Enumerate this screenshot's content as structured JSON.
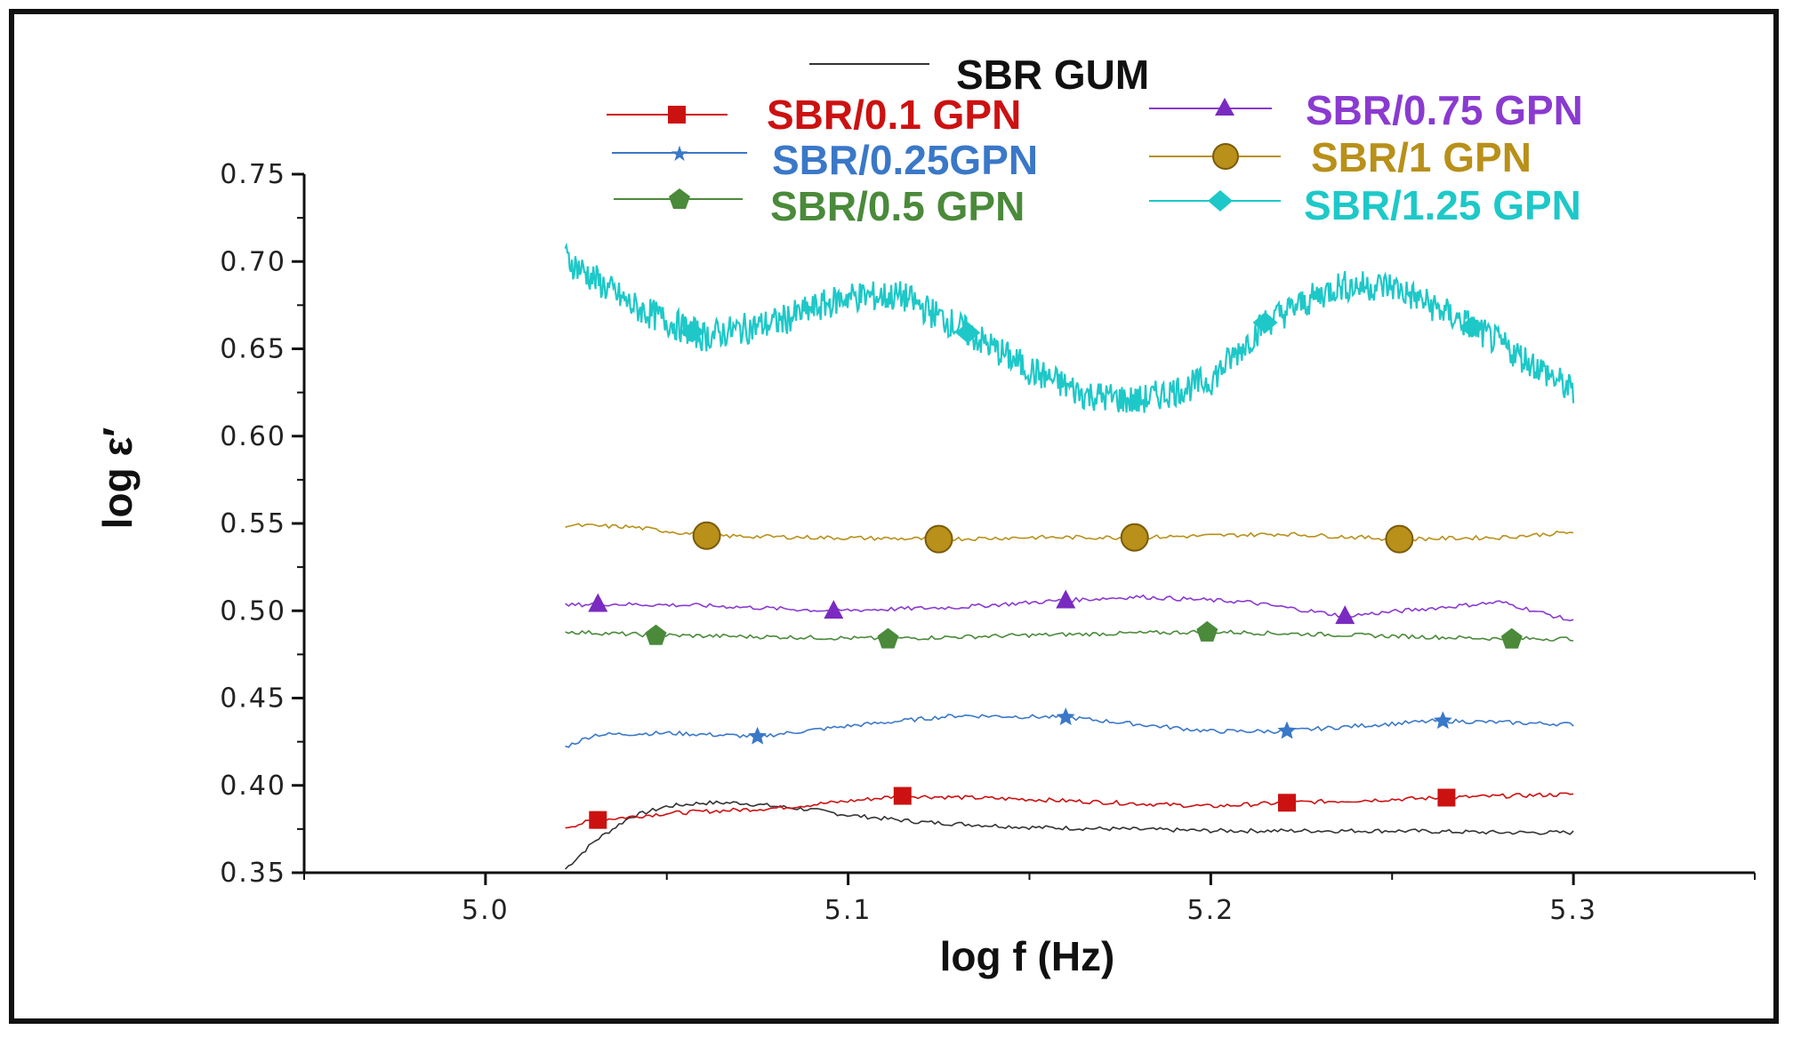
{
  "chart_data": {
    "type": "line",
    "xlabel": "log f (Hz)",
    "ylabel": "log ε′",
    "xlim": [
      4.95,
      5.35
    ],
    "ylim": [
      0.35,
      0.75
    ],
    "xticks": [
      "5.0",
      "5.1",
      "5.2",
      "5.3"
    ],
    "xtick_values": [
      5.0,
      5.1,
      5.2,
      5.3
    ],
    "yticks": [
      "0.35",
      "0.40",
      "0.45",
      "0.50",
      "0.55",
      "0.60",
      "0.65",
      "0.70",
      "0.75"
    ],
    "ytick_values": [
      0.35,
      0.4,
      0.45,
      0.5,
      0.55,
      0.6,
      0.65,
      0.7,
      0.75
    ],
    "series": [
      {
        "name": "SBR GUM",
        "color": "#333333",
        "marker": "none",
        "x": [
          5.022,
          5.03,
          5.04,
          5.05,
          5.06,
          5.07,
          5.08,
          5.09,
          5.1,
          5.12,
          5.15,
          5.2,
          5.25,
          5.28,
          5.3
        ],
        "y": [
          0.352,
          0.368,
          0.382,
          0.388,
          0.39,
          0.39,
          0.388,
          0.386,
          0.383,
          0.379,
          0.376,
          0.374,
          0.374,
          0.373,
          0.373
        ],
        "marker_x": []
      },
      {
        "name": "SBR/0.1 GPN",
        "color": "#cc1111",
        "marker": "square",
        "x": [
          5.022,
          5.03,
          5.05,
          5.08,
          5.1,
          5.115,
          5.15,
          5.2,
          5.22,
          5.265,
          5.3
        ],
        "y": [
          0.376,
          0.38,
          0.384,
          0.387,
          0.391,
          0.394,
          0.392,
          0.388,
          0.39,
          0.393,
          0.395
        ],
        "marker_x": [
          5.031,
          5.115,
          5.221,
          5.265
        ]
      },
      {
        "name": "SBR/0.25GPN",
        "color": "#3a78c8",
        "marker": "star",
        "x": [
          5.022,
          5.03,
          5.05,
          5.075,
          5.1,
          5.13,
          5.16,
          5.2,
          5.22,
          5.24,
          5.263,
          5.3
        ],
        "y": [
          0.422,
          0.429,
          0.43,
          0.428,
          0.434,
          0.44,
          0.439,
          0.431,
          0.431,
          0.434,
          0.437,
          0.435
        ],
        "marker_x": [
          5.075,
          5.16,
          5.221,
          5.264
        ]
      },
      {
        "name": "SBR/0.5 GPN",
        "color": "#4a8a3a",
        "marker": "pentagon",
        "x": [
          5.022,
          5.047,
          5.08,
          5.11,
          5.15,
          5.2,
          5.24,
          5.28,
          5.3
        ],
        "y": [
          0.488,
          0.486,
          0.485,
          0.484,
          0.486,
          0.488,
          0.486,
          0.484,
          0.484
        ],
        "marker_x": [
          5.047,
          5.111,
          5.199,
          5.283
        ]
      },
      {
        "name": "SBR/0.75 GPN",
        "color": "#8a3ad0",
        "marker": "triangle",
        "x": [
          5.022,
          5.03,
          5.06,
          5.095,
          5.13,
          5.16,
          5.18,
          5.21,
          5.237,
          5.28,
          5.3
        ],
        "y": [
          0.503,
          0.504,
          0.503,
          0.5,
          0.502,
          0.506,
          0.508,
          0.505,
          0.497,
          0.505,
          0.494
        ],
        "marker_x": [
          5.031,
          5.096,
          5.16,
          5.237
        ]
      },
      {
        "name": "SBR/1 GPN",
        "color": "#b8901a",
        "marker": "circle",
        "x": [
          5.022,
          5.04,
          5.061,
          5.09,
          5.125,
          5.15,
          5.18,
          5.22,
          5.252,
          5.28,
          5.3
        ],
        "y": [
          0.549,
          0.548,
          0.543,
          0.542,
          0.541,
          0.542,
          0.542,
          0.544,
          0.541,
          0.542,
          0.545
        ],
        "marker_x": [
          5.061,
          5.125,
          5.179,
          5.252
        ]
      },
      {
        "name": "SBR/1.25 GPN",
        "color": "#1ec8c8",
        "marker": "diamond",
        "x": [
          5.022,
          5.04,
          5.06,
          5.08,
          5.1,
          5.115,
          5.13,
          5.15,
          5.165,
          5.18,
          5.2,
          5.215,
          5.235,
          5.25,
          5.27,
          5.29,
          5.3
        ],
        "y": [
          0.702,
          0.675,
          0.657,
          0.665,
          0.68,
          0.68,
          0.663,
          0.638,
          0.624,
          0.62,
          0.632,
          0.665,
          0.686,
          0.686,
          0.665,
          0.64,
          0.625
        ],
        "marker_x": [
          5.057,
          5.133,
          5.215,
          5.272
        ],
        "noisy": true
      }
    ]
  }
}
